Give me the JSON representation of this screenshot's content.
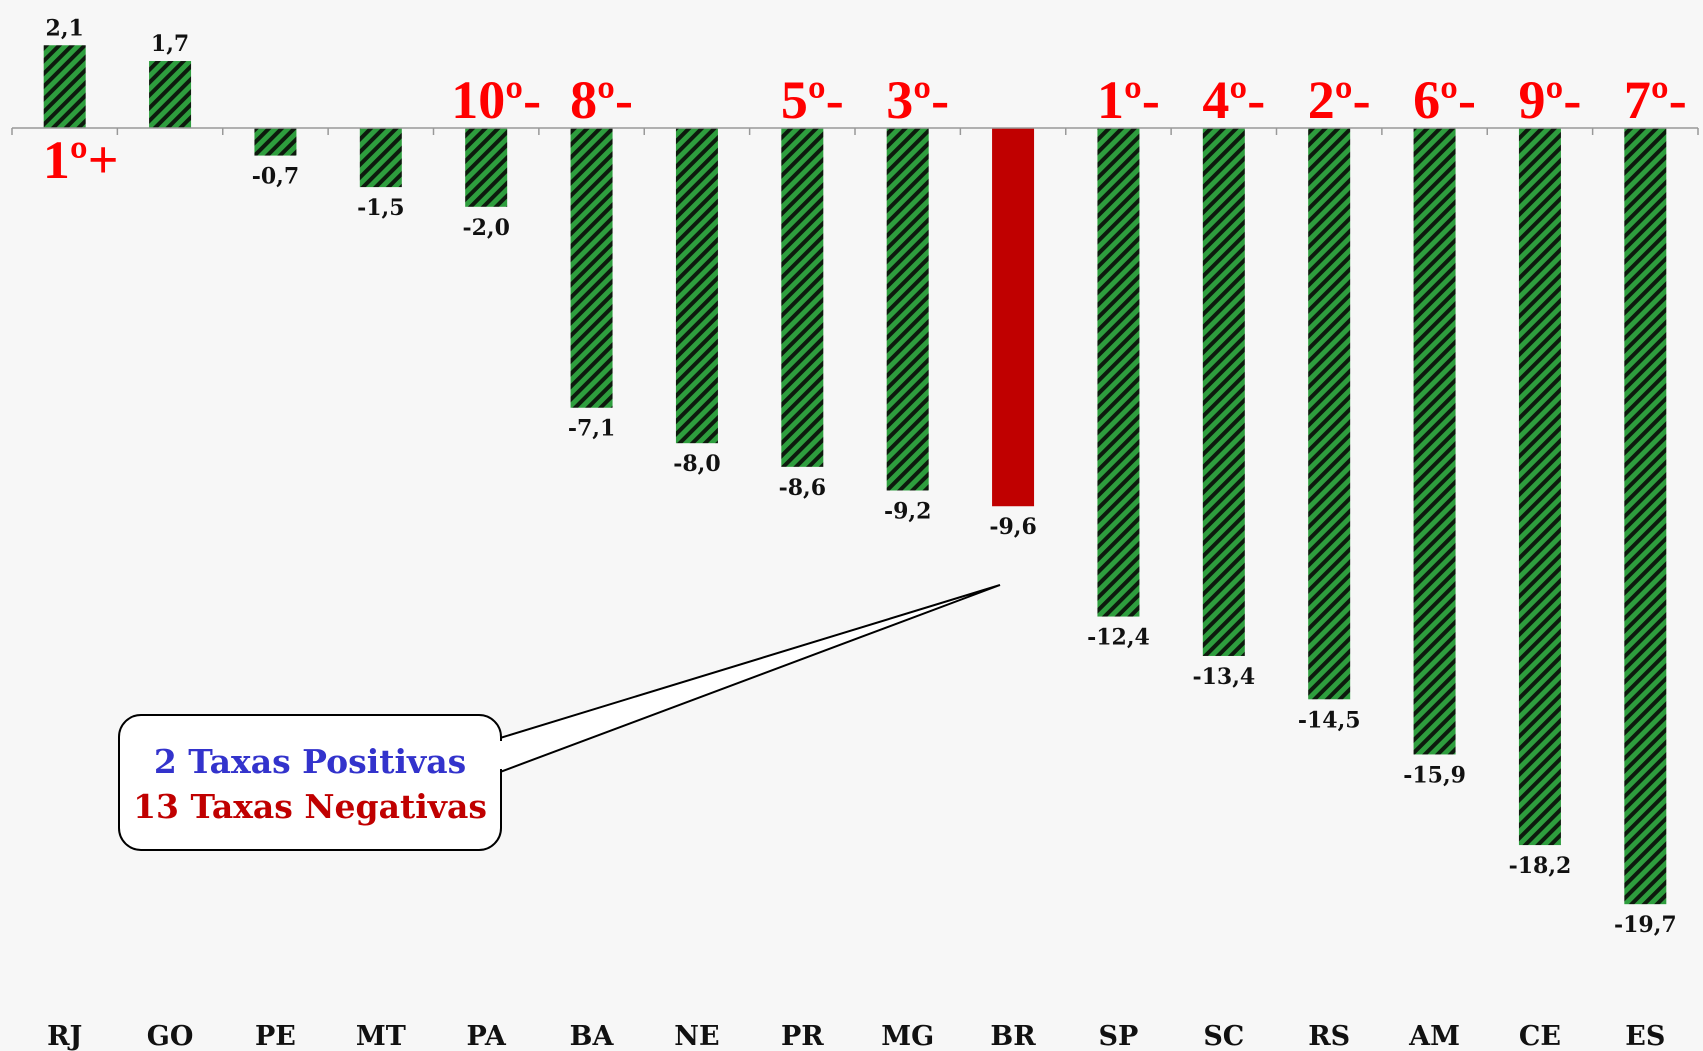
{
  "chart_data": {
    "type": "bar",
    "categories": [
      "RJ",
      "GO",
      "PE",
      "MT",
      "PA",
      "BA",
      "NE",
      "PR",
      "MG",
      "BR",
      "SP",
      "SC",
      "RS",
      "AM",
      "CE",
      "ES"
    ],
    "values": [
      2.1,
      1.7,
      -0.7,
      -1.5,
      -2.0,
      -7.1,
      -8.0,
      -8.6,
      -9.2,
      -9.6,
      -12.4,
      -13.4,
      -14.5,
      -15.9,
      -18.2,
      -19.7
    ],
    "value_labels": [
      "2,1",
      "1,7",
      "-0,7",
      "-1,5",
      "-2,0",
      "-7,1",
      "-8,0",
      "-8,6",
      "-9,2",
      "-9,6",
      "-12,4",
      "-13,4",
      "-14,5",
      "-15,9",
      "-18,2",
      "-19,7"
    ],
    "rank_labels": [
      "1º+",
      "",
      "",
      "",
      "10º-",
      "8º-",
      "",
      "5º-",
      "3º-",
      "",
      "1º-",
      "4º-",
      "2º-",
      "6º-",
      "9º-",
      "7º-"
    ],
    "highlight_category": "BR",
    "ylim": [
      -22,
      3
    ],
    "colors": {
      "bar_fill": "#2e9e3e",
      "bar_stripe": "#0d1a0d",
      "highlight": "#c00000",
      "rank_text": "#ff0000",
      "positive_text": "#3333cc",
      "negative_text": "#c00000"
    },
    "annotations": {
      "positive": "2 Taxas Positivas",
      "negative": "13 Taxas Negativas"
    }
  }
}
